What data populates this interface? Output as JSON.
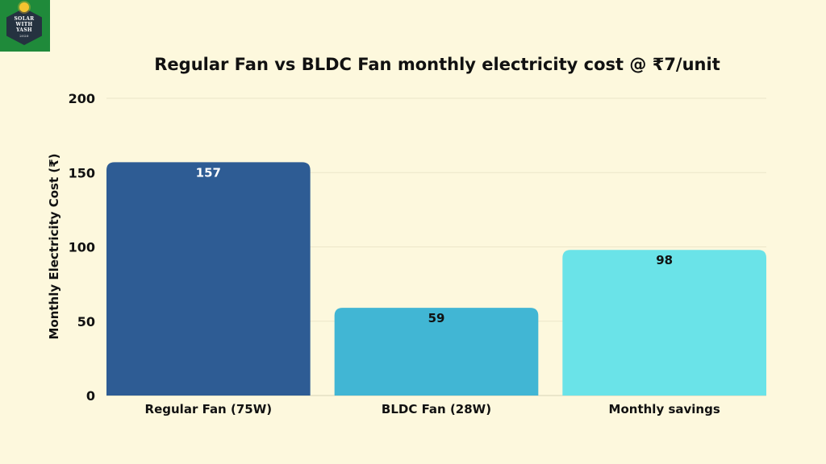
{
  "logo": {
    "line1": "SOLAR",
    "line2": "WITH",
    "line3": "YASH",
    "est": "2020"
  },
  "chart_data": {
    "type": "bar",
    "title": "Regular Fan vs BLDC Fan monthly electricity cost @ ₹7/unit",
    "xlabel": "",
    "ylabel": "Monthly Electricity Cost (₹)",
    "ylim": [
      0,
      200
    ],
    "yticks": [
      0,
      50,
      100,
      150,
      200
    ],
    "categories": [
      "Regular Fan (75W)",
      "BLDC Fan (28W)",
      "Monthly savings"
    ],
    "values": [
      157,
      59,
      98
    ],
    "data_labels": [
      "157",
      "59",
      "98"
    ],
    "bar_colors": [
      "#2e5c94",
      "#41b6d4",
      "#6ae3e8"
    ],
    "label_colors": [
      "#ffffff",
      "#111111",
      "#111111"
    ],
    "grid": true,
    "legend": "none"
  }
}
